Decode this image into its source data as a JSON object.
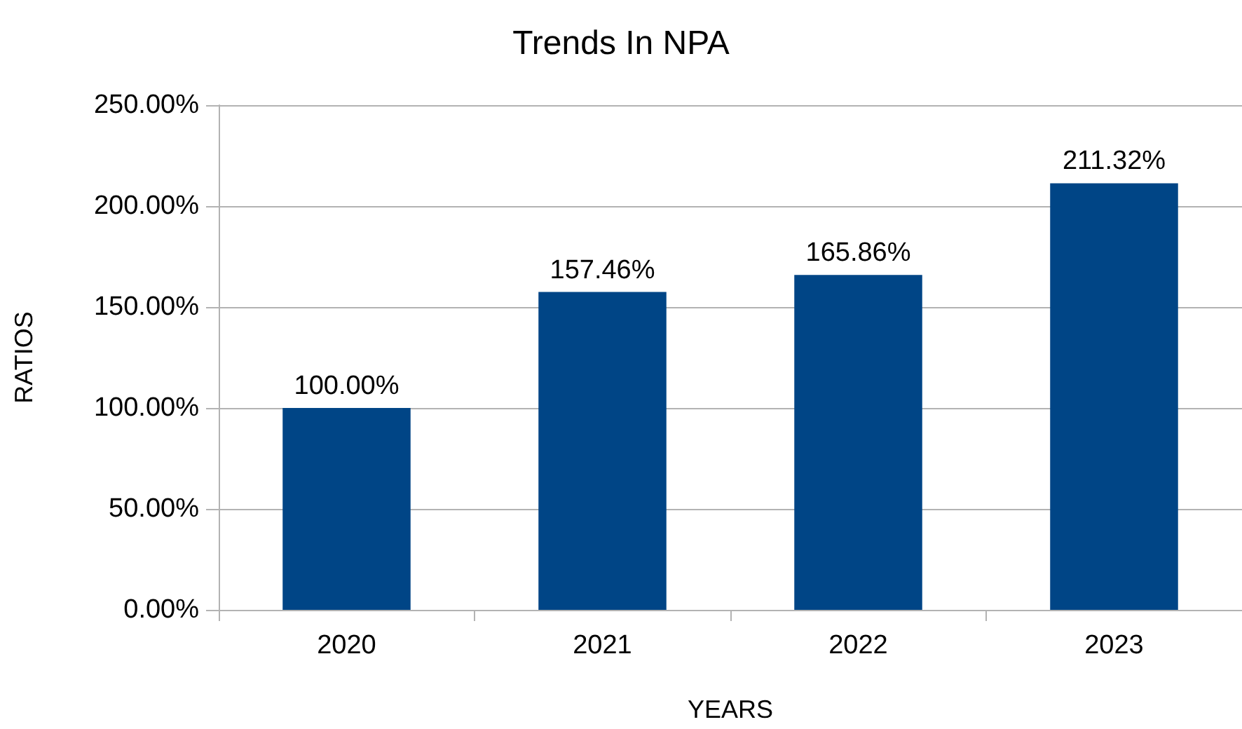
{
  "chart_data": {
    "type": "bar",
    "title": "Trends In NPA",
    "xlabel": "YEARS",
    "ylabel": "RATIOS",
    "categories": [
      "2020",
      "2021",
      "2022",
      "2023"
    ],
    "series": [
      {
        "color": "#004586",
        "values": [
          100.0,
          157.46,
          165.86,
          211.32
        ],
        "value_labels": [
          "100.00%",
          "157.46%",
          "165.86%",
          "211.32%"
        ]
      }
    ],
    "ylim": [
      0,
      250
    ],
    "yticks": [
      {
        "value": 0,
        "label": "0.00%"
      },
      {
        "value": 50,
        "label": "50.00%"
      },
      {
        "value": 100,
        "label": "100.00%"
      },
      {
        "value": 150,
        "label": "150.00%"
      },
      {
        "value": 200,
        "label": "200.00%"
      },
      {
        "value": 250,
        "label": "250.00%"
      }
    ],
    "grid": "y"
  }
}
